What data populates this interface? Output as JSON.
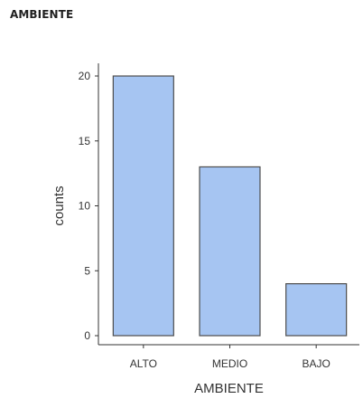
{
  "header": {
    "title": "AMBIENTE"
  },
  "chart_data": {
    "type": "bar",
    "categories": [
      "ALTO",
      "MEDIO",
      "BAJO"
    ],
    "values": [
      20,
      13,
      4
    ],
    "title": "",
    "xlabel": "AMBIENTE",
    "ylabel": "counts",
    "ylim": [
      0,
      20
    ],
    "yticks": [
      0,
      5,
      10,
      15,
      20
    ],
    "grid": false,
    "colors": {
      "bar_fill": "#a6c5f2",
      "bar_stroke": "#4d4d4d",
      "axis": "#333333"
    }
  }
}
